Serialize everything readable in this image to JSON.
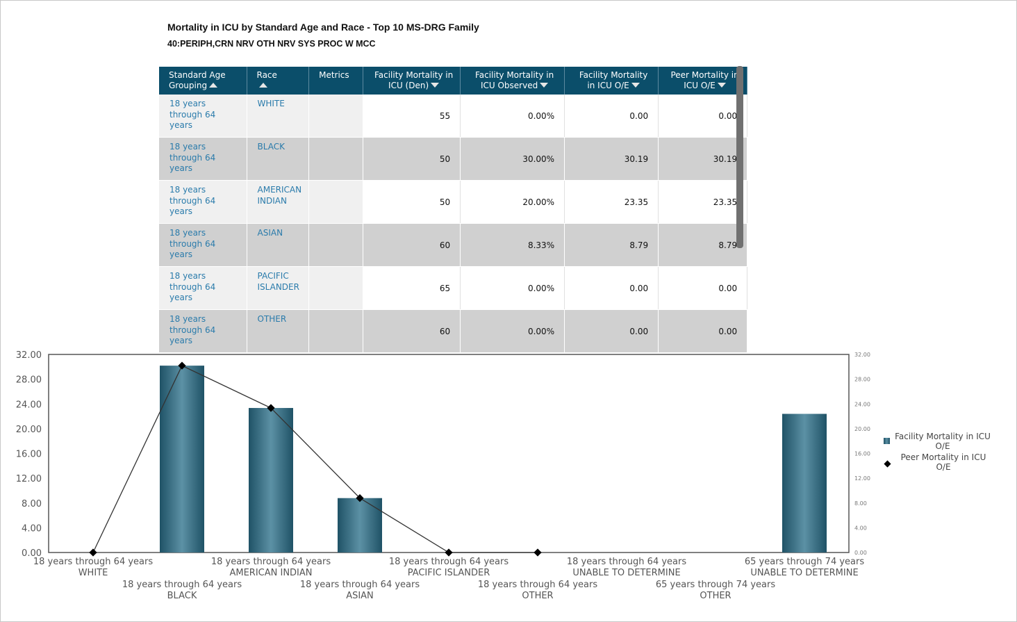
{
  "report": {
    "title": "Mortality in ICU by Standard Age and Race - Top 10 MS-DRG Family",
    "subtitle": "40:PERIPH,CRN NRV OTH NRV SYS PROC W MCC"
  },
  "table": {
    "columns": [
      {
        "label": "Standard Age Grouping",
        "sort": "asc"
      },
      {
        "label": "Race",
        "sort": "asc"
      },
      {
        "label": "Metrics",
        "sort": ""
      },
      {
        "label": "Facility Mortality in ICU (Den)",
        "sort": "desc"
      },
      {
        "label": "Facility Mortality in ICU Observed",
        "sort": "desc"
      },
      {
        "label": "Facility Mortality in ICU O/E",
        "sort": "desc"
      },
      {
        "label": "Peer Mortality in ICU O/E",
        "sort": "desc"
      }
    ],
    "rows": [
      {
        "age": "18 years through 64 years",
        "race": "WHITE",
        "metrics": "",
        "den": "55",
        "observed": "0.00%",
        "fac_oe": "0.00",
        "peer_oe": "0.00"
      },
      {
        "age": "18 years through 64 years",
        "race": "BLACK",
        "metrics": "",
        "den": "50",
        "observed": "30.00%",
        "fac_oe": "30.19",
        "peer_oe": "30.19"
      },
      {
        "age": "18 years through 64 years",
        "race": "AMERICAN INDIAN",
        "metrics": "",
        "den": "50",
        "observed": "20.00%",
        "fac_oe": "23.35",
        "peer_oe": "23.35"
      },
      {
        "age": "18 years through 64 years",
        "race": "ASIAN",
        "metrics": "",
        "den": "60",
        "observed": "8.33%",
        "fac_oe": "8.79",
        "peer_oe": "8.79"
      },
      {
        "age": "18 years through 64 years",
        "race": "PACIFIC ISLANDER",
        "metrics": "",
        "den": "65",
        "observed": "0.00%",
        "fac_oe": "0.00",
        "peer_oe": "0.00"
      },
      {
        "age": "18 years through 64 years",
        "race": "OTHER",
        "metrics": "",
        "den": "60",
        "observed": "0.00%",
        "fac_oe": "0.00",
        "peer_oe": "0.00"
      }
    ]
  },
  "colors": {
    "header": "#0b4e6a",
    "link": "#2a7bab",
    "bar": "#2b5f73",
    "line": "#333333"
  },
  "chart_data": {
    "type": "bar",
    "categories": [
      [
        "18 years through 64 years",
        "WHITE"
      ],
      [
        "18 years through 64 years",
        "BLACK"
      ],
      [
        "18 years through 64 years",
        "AMERICAN INDIAN"
      ],
      [
        "18 years through 64 years",
        "ASIAN"
      ],
      [
        "18 years through 64 years",
        "PACIFIC ISLANDER"
      ],
      [
        "18 years through 64 years",
        "OTHER"
      ],
      [
        "18 years through 64 years",
        "UNABLE TO DETERMINE"
      ],
      [
        "65 years through 74 years",
        "OTHER"
      ],
      [
        "65 years through 74 years",
        "UNABLE TO DETERMINE"
      ]
    ],
    "series": [
      {
        "name": "Facility Mortality in ICU O/E",
        "type": "bar",
        "values": [
          0,
          30.19,
          23.35,
          8.79,
          0,
          0,
          null,
          null,
          22.4
        ]
      },
      {
        "name": "Peer Mortality in ICU O/E",
        "type": "line",
        "marker": "diamond",
        "values": [
          0,
          30.19,
          23.35,
          8.79,
          0,
          0,
          null,
          null,
          null
        ]
      }
    ],
    "y_ticks": [
      "0.00",
      "4.00",
      "8.00",
      "12.00",
      "16.00",
      "20.00",
      "24.00",
      "28.00",
      "32.00"
    ],
    "ylim": [
      0,
      32
    ],
    "secondary_axis": true,
    "grid": false,
    "legend": "right"
  }
}
